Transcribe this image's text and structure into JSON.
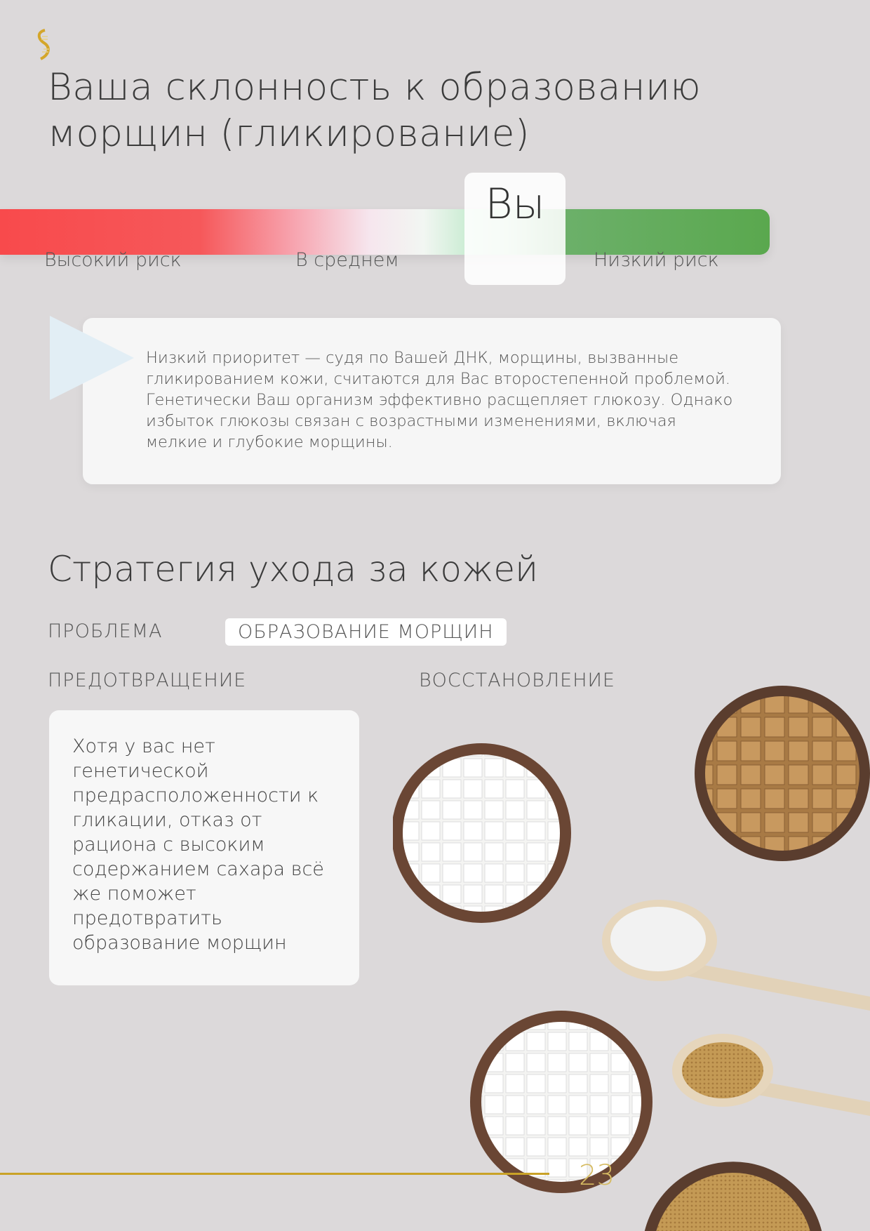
{
  "header": {
    "logo": "dna-helix-logo"
  },
  "title": {
    "line1": "Ваша склонность к образованию",
    "line2": "морщин (гликирование)"
  },
  "risk_scale": {
    "labels": {
      "high": "Высокий риск",
      "average": "В среднем",
      "low": "Низкий риск"
    },
    "marker_label": "Вы",
    "marker_position": "low",
    "colors": {
      "high": "#f84a4c",
      "average": "#f4f0f2",
      "low": "#5aa84e"
    }
  },
  "callout": {
    "text": "Низкий приоритет — судя по Вашей ДНК, морщины, вызванные гликированием кожи, считаются для Вас второстепенной проблемой. Генетически Ваш организм эффективно расщепляет глюкозу. Однако избыток глюкозы связан с возрастными изменениями, включая мелкие и глубокие морщины."
  },
  "strategy": {
    "title": "Стратегия ухода за кожей",
    "problem_label": "ПРОБЛЕМА",
    "problem_value": "ОБРАЗОВАНИЕ МОРЩИН",
    "prevention_label": "ПРЕДОТВРАЩЕНИЕ",
    "recovery_label": "ВОССТАНОВЛЕНИЕ",
    "prevention_text": "Хотя у вас нет генетической предрасположенности к гликации, отказ от рациона с высоким содержанием сахара всё же поможет предотвратить образование морщин"
  },
  "footer": {
    "page_number": "23",
    "accent": "#c9a227"
  }
}
